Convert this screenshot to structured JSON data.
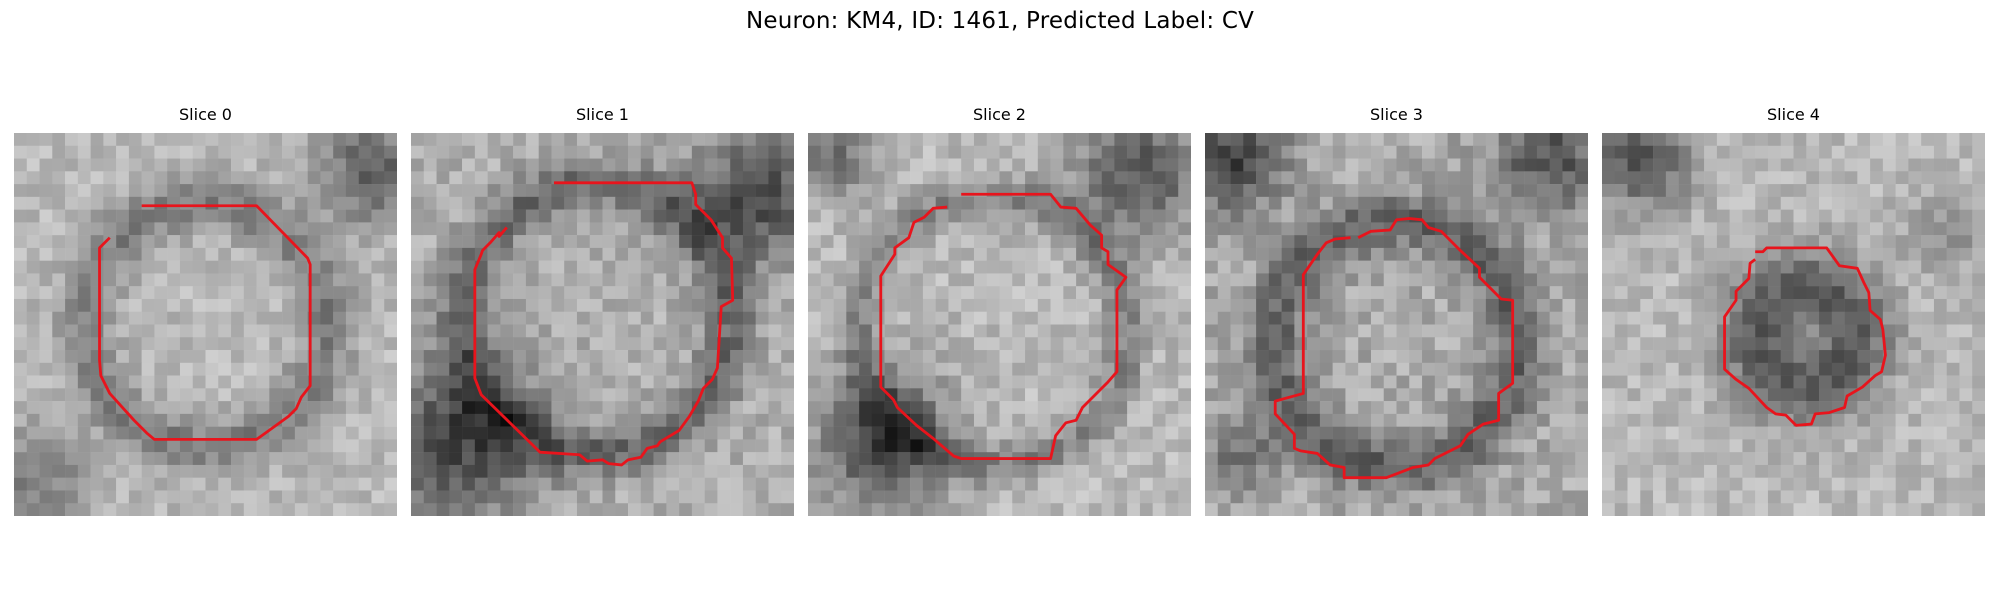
{
  "figure": {
    "title": "Neuron: KM4, ID: 1461, Predicted Label: CV"
  },
  "panels": [
    {
      "title": "Slice 0",
      "seed": 11,
      "mean": 185,
      "spread": 45
    },
    {
      "title": "Slice 1",
      "seed": 23,
      "mean": 175,
      "spread": 50
    },
    {
      "title": "Slice 2",
      "seed": 37,
      "mean": 185,
      "spread": 48
    },
    {
      "title": "Slice 3",
      "seed": 41,
      "mean": 170,
      "spread": 55
    },
    {
      "title": "Slice 4",
      "seed": 59,
      "mean": 185,
      "spread": 45
    }
  ],
  "style": {
    "contour_color": "#e8141c",
    "colormap": "gray"
  }
}
